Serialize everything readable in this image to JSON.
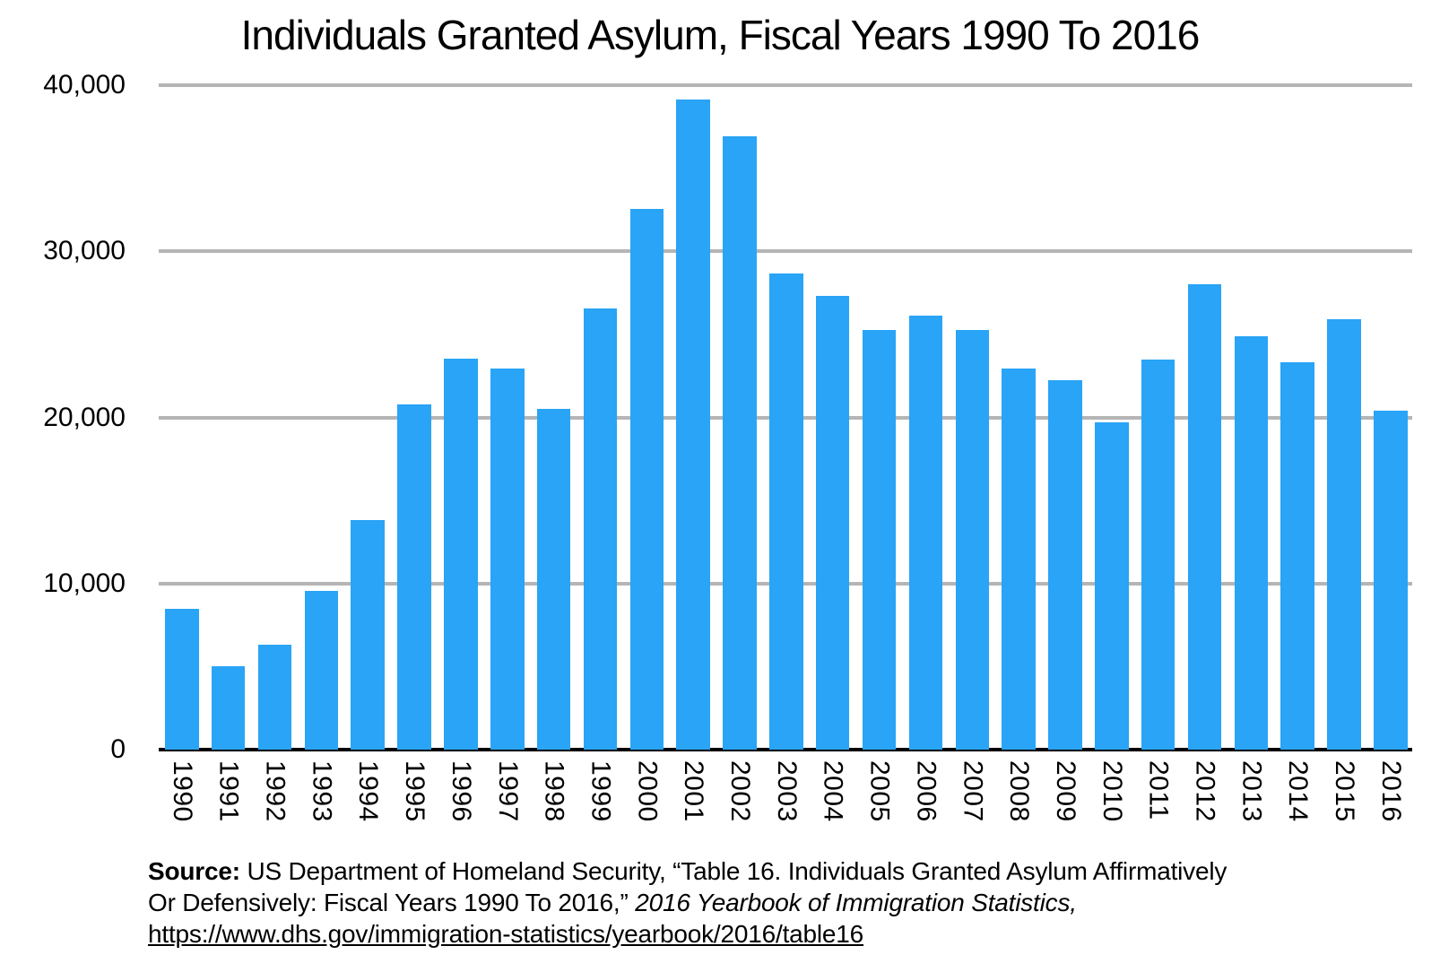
{
  "chart_data": {
    "type": "bar",
    "title": "Individuals Granted Asylum, Fiscal Years 1990 To 2016",
    "xlabel": "",
    "ylabel": "",
    "categories": [
      "1990",
      "1991",
      "1992",
      "1993",
      "1994",
      "1995",
      "1996",
      "1997",
      "1998",
      "1999",
      "2000",
      "2001",
      "2002",
      "2003",
      "2004",
      "2005",
      "2006",
      "2007",
      "2008",
      "2009",
      "2010",
      "2011",
      "2012",
      "2013",
      "2014",
      "2015",
      "2016"
    ],
    "values": [
      8472,
      5035,
      6307,
      9555,
      13827,
      20766,
      23533,
      22939,
      20539,
      26578,
      32531,
      39146,
      36924,
      28684,
      27321,
      25257,
      26113,
      25270,
      22930,
      22219,
      19700,
      23500,
      28000,
      24900,
      23300,
      25900,
      20400
    ],
    "ylim": [
      0,
      40000
    ],
    "y_ticks": {
      "labels": [
        "40,000",
        "30,000",
        "20,000",
        "10,000",
        "0"
      ],
      "values": [
        40000,
        30000,
        20000,
        10000,
        0
      ]
    },
    "grid": "horizontal-only",
    "legend": false,
    "bar_color": "#29a4f6",
    "gridline_color": "#b5b5b5",
    "axis_line_color": "#000000",
    "text_color": "#000000"
  },
  "source": {
    "label": "Source:",
    "line1": " US Department of Homeland Security, “Table 16. Individuals Granted Asylum Affirmatively",
    "line2": "Or Defensively: Fiscal Years 1990 To 2016,” ",
    "line2_italic": "2016 Yearbook of Immigration Statistics,",
    "link": "https://www.dhs.gov/immigration-statistics/yearbook/2016/table16"
  }
}
